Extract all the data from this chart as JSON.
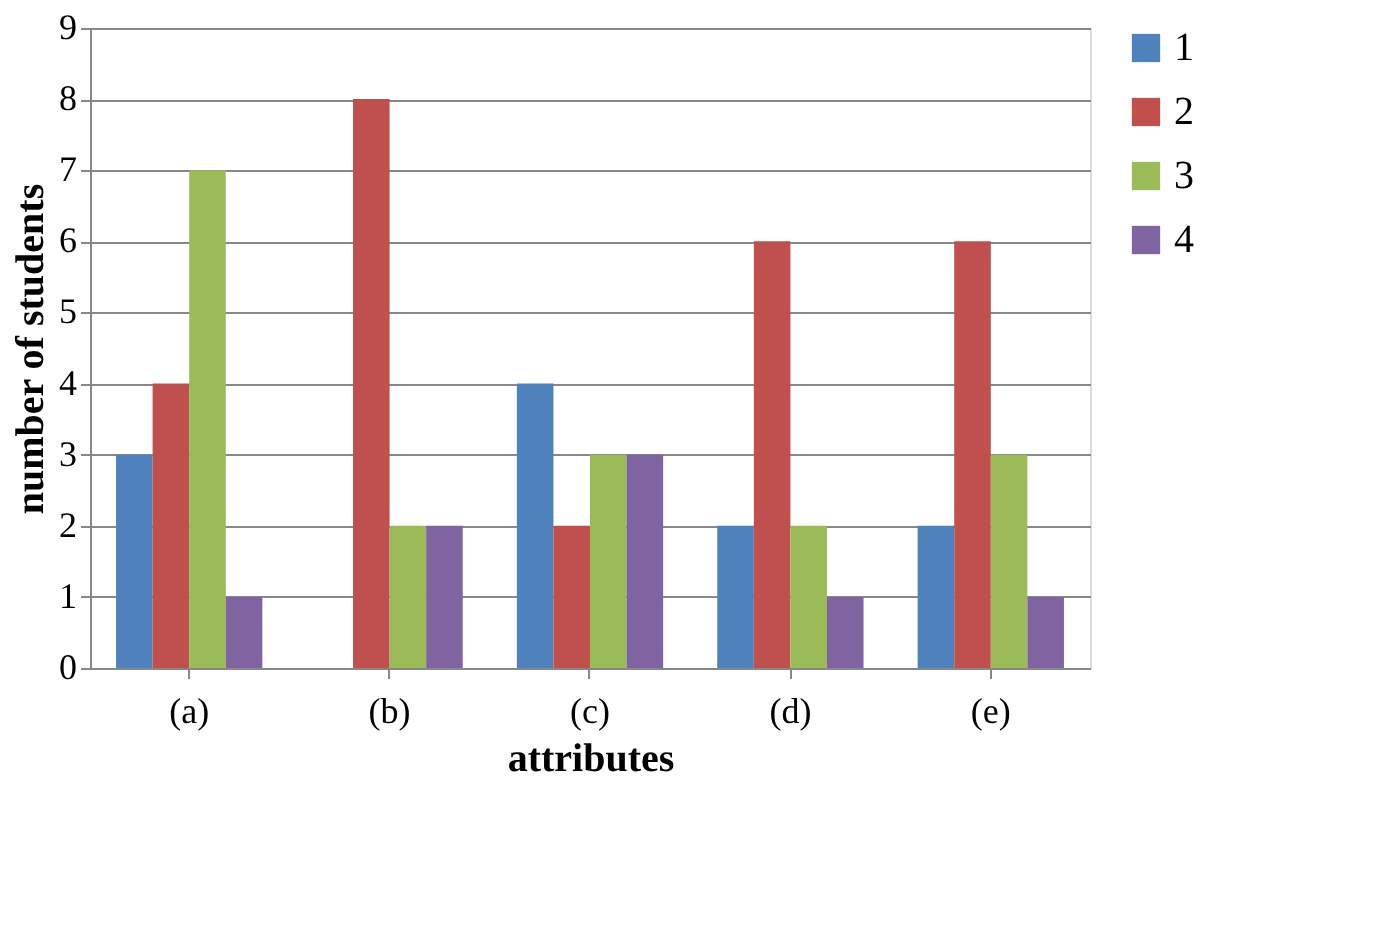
{
  "chart_data": {
    "type": "bar",
    "xlabel": "attributes",
    "ylabel": "number of students",
    "categories": [
      "(a)",
      "(b)",
      "(c)",
      "(d)",
      "(e)"
    ],
    "series": [
      {
        "name": "1",
        "color": "#4f81bd",
        "values": [
          3,
          0,
          4,
          2,
          2
        ]
      },
      {
        "name": "2",
        "color": "#c0504d",
        "values": [
          4,
          8,
          2,
          6,
          6
        ]
      },
      {
        "name": "3",
        "color": "#9bbb59",
        "values": [
          7,
          2,
          3,
          2,
          3
        ]
      },
      {
        "name": "4",
        "color": "#8064a2",
        "values": [
          1,
          2,
          3,
          1,
          1
        ]
      }
    ],
    "ylim": [
      0,
      9
    ],
    "yticks": [
      0,
      1,
      2,
      3,
      4,
      5,
      6,
      7,
      8,
      9
    ],
    "grid": "y",
    "legend": "right"
  }
}
